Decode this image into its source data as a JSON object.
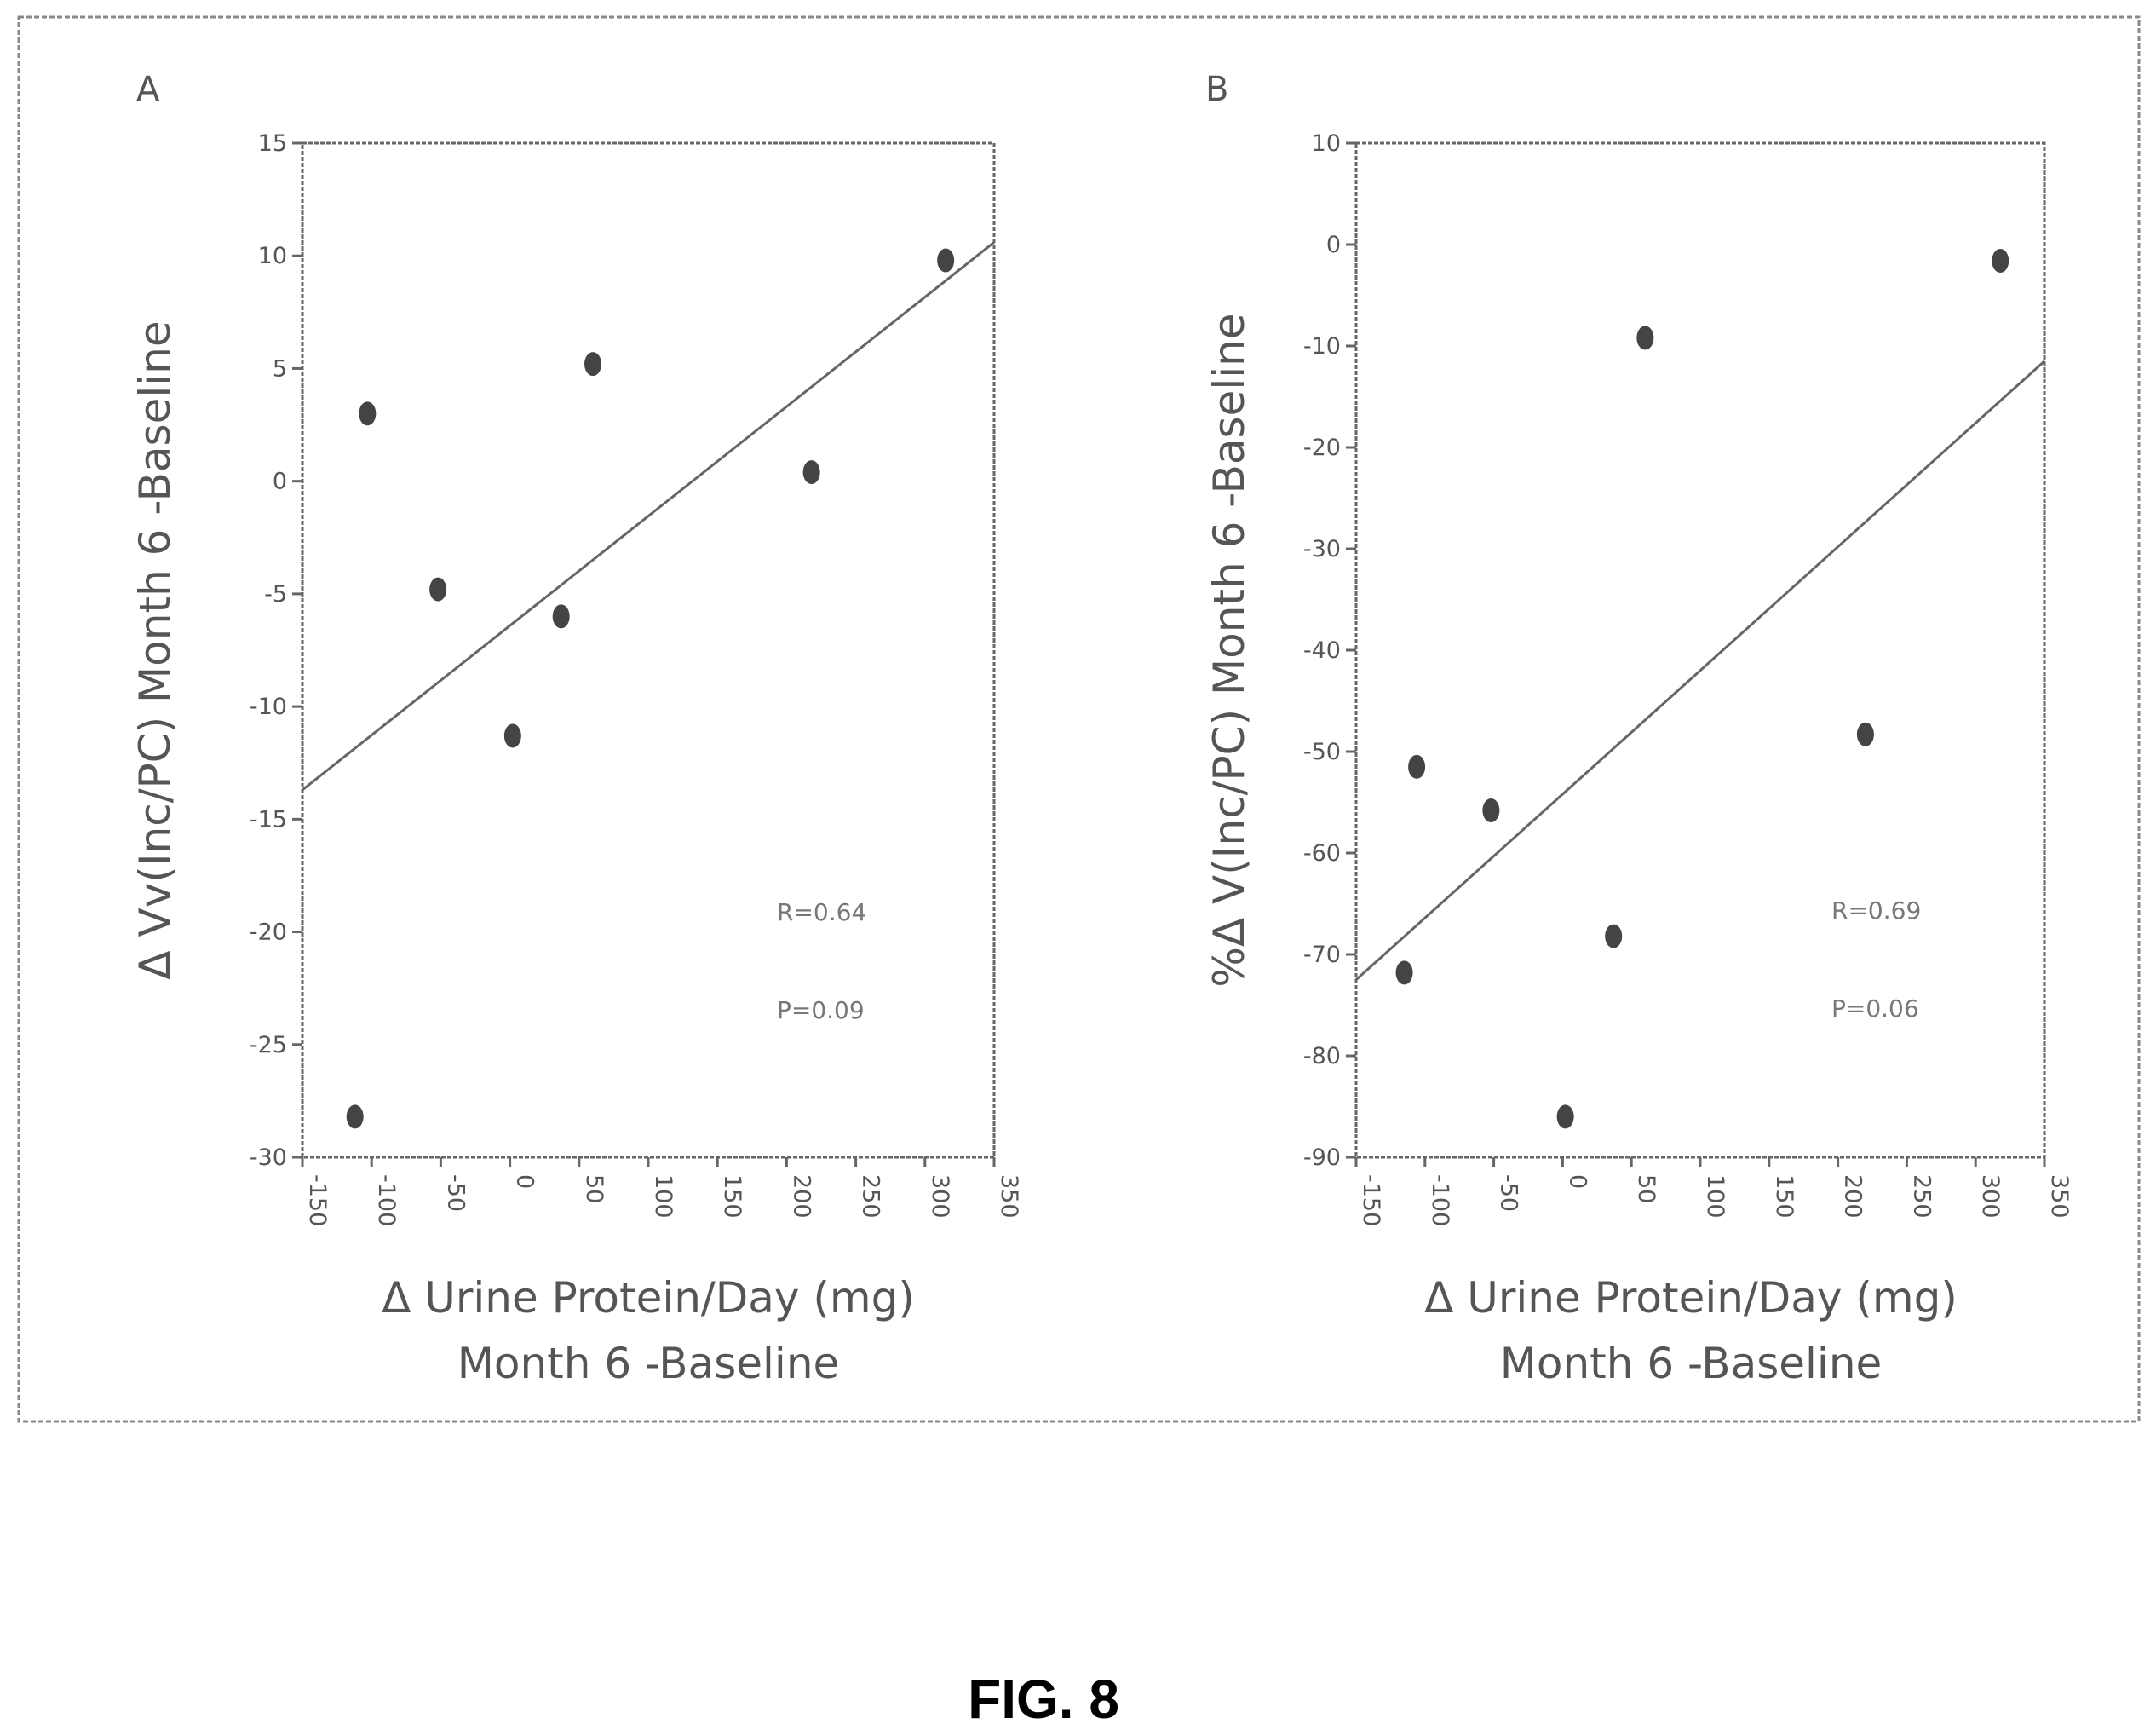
{
  "figure": {
    "caption": "FIG. 8",
    "colors": {
      "ink": "#555555",
      "frame": "#888888",
      "points": "#444444",
      "caption": "#000000"
    }
  },
  "chart_data": [
    {
      "type": "scatter",
      "panel_label": "A",
      "title": "",
      "xlabel": [
        "Δ Urine Protein/Day (mg)",
        "Month 6 -Baseline"
      ],
      "ylabel": "Δ Vv(Inc/PC) Month 6 -Baseline",
      "xlim": [
        -150,
        350
      ],
      "ylim": [
        -30,
        15
      ],
      "xticks": [
        -150,
        -100,
        -50,
        0,
        50,
        100,
        150,
        200,
        250,
        300,
        350
      ],
      "yticks": [
        15,
        10,
        5,
        0,
        -5,
        -10,
        -15,
        -20,
        -25,
        -30
      ],
      "grid": false,
      "points": [
        {
          "x": -112,
          "y": -28.2
        },
        {
          "x": -103,
          "y": 3.0
        },
        {
          "x": -52,
          "y": -4.8
        },
        {
          "x": 2,
          "y": -11.3
        },
        {
          "x": 37,
          "y": -6.0
        },
        {
          "x": 60,
          "y": 5.2
        },
        {
          "x": 218,
          "y": 0.4
        },
        {
          "x": 315,
          "y": 9.8
        }
      ],
      "trendline": {
        "x": [
          -150,
          350
        ],
        "y": [
          -13.7,
          10.6
        ]
      },
      "annotations": [
        "R=0.64",
        "P=0.09"
      ]
    },
    {
      "type": "scatter",
      "panel_label": "B",
      "title": "",
      "xlabel": [
        "Δ Urine Protein/Day (mg)",
        "Month 6 -Baseline"
      ],
      "ylabel": "%Δ V(Inc/PC) Month 6 -Baseline",
      "xlim": [
        -150,
        350
      ],
      "ylim": [
        -90,
        10
      ],
      "xticks": [
        -150,
        -100,
        -50,
        0,
        50,
        100,
        150,
        200,
        250,
        300,
        350
      ],
      "yticks": [
        10,
        0,
        -10,
        -20,
        -30,
        -40,
        -50,
        -60,
        -70,
        -80,
        -90
      ],
      "grid": false,
      "points": [
        {
          "x": -115,
          "y": -71.8
        },
        {
          "x": -106,
          "y": -51.5
        },
        {
          "x": -52,
          "y": -55.8
        },
        {
          "x": 2,
          "y": -86.0
        },
        {
          "x": 37,
          "y": -68.2
        },
        {
          "x": 60,
          "y": -9.2
        },
        {
          "x": 220,
          "y": -48.3
        },
        {
          "x": 318,
          "y": -1.6
        }
      ],
      "trendline": {
        "x": [
          -150,
          350
        ],
        "y": [
          -72.5,
          -11.5
        ]
      },
      "annotations": [
        "R=0.69",
        "P=0.06"
      ]
    }
  ]
}
